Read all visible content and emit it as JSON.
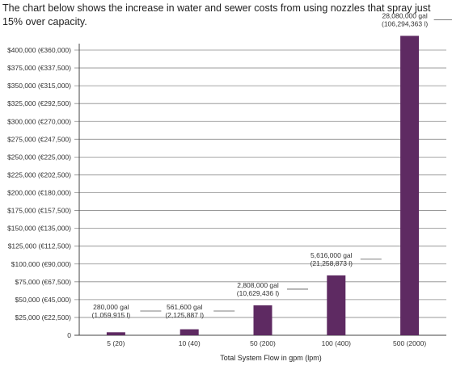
{
  "intro_text": "The chart below shows the increase in water and sewer costs from using nozzles that spray just 15% over capacity.",
  "chart_data": {
    "type": "bar",
    "categories": [
      "5 (20)",
      "10 (40)",
      "50 (200)",
      "100 (400)",
      "500 (2000)"
    ],
    "values": [
      4200,
      8400,
      42000,
      84000,
      420000
    ],
    "title": "",
    "xlabel": "Total System Flow in gpm (lpm)",
    "ylabel": "",
    "ylim": [
      0,
      400000
    ],
    "y_ticks": [
      0,
      25000,
      50000,
      75000,
      100000,
      125000,
      150000,
      175000,
      200000,
      225000,
      250000,
      275000,
      300000,
      325000,
      350000,
      375000,
      400000
    ],
    "y_tick_labels": [
      "0",
      "$25,000 (€22,500)",
      "$50,000 (€45,000)",
      "$75,000 (€67,500)",
      "$100,000 (€90,000)",
      "$125,000 (€112,500)",
      "$150,000 (€135,000)",
      "$175,000 (€157,500)",
      "$200,000 (€180,000)",
      "$225,000 (€202,500)",
      "$250,000 (€225,000)",
      "$275,000 (€247,500)",
      "$300,000 (€270,000)",
      "$325,000 (€292,500)",
      "$350,000 (€315,000)",
      "$375,000 (€337,500)",
      "$400,000 (€360,000)"
    ],
    "annotations": [
      [
        "280,000 gal",
        "(1,059,915 l)"
      ],
      [
        "561,600 gal",
        "(2,125,887 l)"
      ],
      [
        "2,808,000 gal",
        "(10,629,436 l)"
      ],
      [
        "5,616,000 gal",
        "(21,258,873 l)"
      ],
      [
        "28,080,000 gal",
        "(106,294,363 l)"
      ]
    ],
    "grid": true,
    "bar_color": "#5e2a62",
    "grid_color": "#8a8a8a"
  }
}
